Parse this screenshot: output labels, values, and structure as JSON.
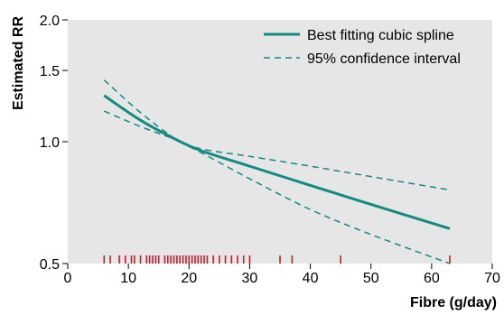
{
  "chart_data": {
    "type": "line",
    "xlabel": "Fibre (g/day)",
    "ylabel": "Estimated RR",
    "xlim": [
      0,
      70
    ],
    "ylim": [
      0.5,
      2.0
    ],
    "y_scale": "log",
    "x_ticks": [
      0,
      10,
      20,
      30,
      40,
      50,
      60,
      70
    ],
    "x_tick_labels": [
      "0",
      "10",
      "20",
      "30",
      "40",
      "50",
      "60",
      "70"
    ],
    "y_ticks": [
      0.5,
      1.0,
      1.5,
      2.0
    ],
    "y_tick_labels": [
      "0.5",
      "1.0",
      "1.5",
      "2.0"
    ],
    "grid": false,
    "background": "#e6e6e6",
    "legend_position": "top-right",
    "series": [
      {
        "name": "Best fitting cubic spline",
        "style": "solid",
        "color": "#138b83",
        "x": [
          6,
          12,
          18,
          22,
          30,
          40,
          50,
          63
        ],
        "y": [
          1.3,
          1.13,
          1.01,
          0.95,
          0.87,
          0.78,
          0.7,
          0.61
        ]
      },
      {
        "name": "95% confidence interval",
        "style": "dashed",
        "color": "#138b83",
        "x": [
          6,
          12,
          18,
          22,
          30,
          40,
          50,
          63
        ],
        "y": [
          1.42,
          1.18,
          1.01,
          0.94,
          0.81,
          0.68,
          0.59,
          0.5
        ]
      },
      {
        "name": "",
        "style": "dashed",
        "color": "#138b83",
        "x": [
          6,
          12,
          18,
          22,
          30,
          40,
          50,
          63
        ],
        "y": [
          1.19,
          1.09,
          1.01,
          0.96,
          0.92,
          0.87,
          0.82,
          0.76
        ]
      }
    ],
    "rug": {
      "color": "#c0202a",
      "x": [
        6,
        7,
        8.5,
        9.5,
        10.5,
        11,
        12,
        13,
        13.5,
        14,
        14.5,
        15,
        16,
        16.5,
        17,
        17.5,
        18,
        18.5,
        19,
        19.5,
        20,
        20.5,
        21,
        21.5,
        22,
        22.5,
        23,
        24,
        25,
        26,
        27,
        28,
        29,
        30,
        35,
        37,
        45,
        63
      ]
    }
  }
}
